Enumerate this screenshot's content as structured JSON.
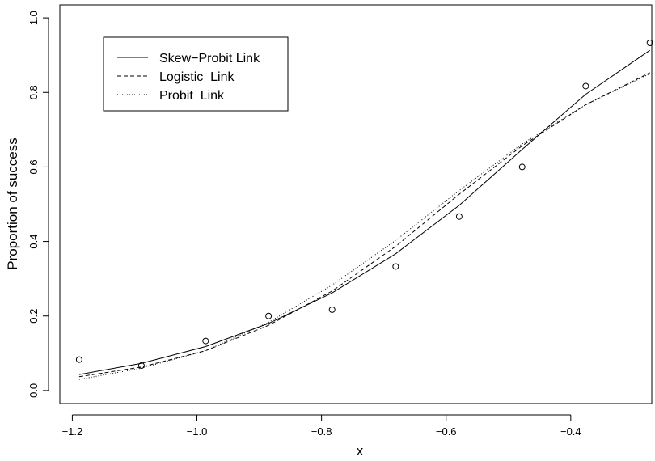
{
  "chart_data": {
    "type": "line",
    "xlabel": "x",
    "ylabel": "Proportion of success",
    "xlim": [
      -1.22,
      -0.27
    ],
    "ylim": [
      -0.035,
      1.035
    ],
    "x_ticks": [
      -1.2,
      -1.0,
      -0.8,
      -0.6,
      -0.4
    ],
    "x_tick_labels": [
      "−1.2",
      "−1.0",
      "−0.8",
      "−0.6",
      "−0.4"
    ],
    "y_ticks": [
      0.0,
      0.2,
      0.4,
      0.6,
      0.8,
      1.0
    ],
    "y_tick_labels": [
      "0.0",
      "0.2",
      "0.4",
      "0.6",
      "0.8",
      "1.0"
    ],
    "grid": false,
    "legend_position": "top-left",
    "observed": {
      "x": [
        -1.189,
        -1.089,
        -0.986,
        -0.885,
        -0.783,
        -0.681,
        -0.579,
        -0.478,
        -0.376,
        -0.273
      ],
      "y": [
        0.083,
        0.067,
        0.133,
        0.2,
        0.217,
        0.333,
        0.467,
        0.6,
        0.817,
        0.933
      ]
    },
    "series": [
      {
        "name": "Skew−Probit Link",
        "dash": "solid",
        "x": [
          -1.189,
          -1.089,
          -0.986,
          -0.885,
          -0.783,
          -0.681,
          -0.579,
          -0.478,
          -0.376,
          -0.273
        ],
        "y": [
          0.043,
          0.073,
          0.118,
          0.18,
          0.262,
          0.367,
          0.497,
          0.647,
          0.795,
          0.913
        ]
      },
      {
        "name": "Logistic  Link",
        "dash": "dashed",
        "x": [
          -1.189,
          -1.089,
          -0.986,
          -0.885,
          -0.783,
          -0.681,
          -0.579,
          -0.478,
          -0.376,
          -0.273
        ],
        "y": [
          0.037,
          0.063,
          0.107,
          0.175,
          0.267,
          0.387,
          0.527,
          0.657,
          0.767,
          0.853
        ]
      },
      {
        "name": "Probit  Link",
        "dash": "dotted",
        "x": [
          -1.189,
          -1.089,
          -0.986,
          -0.885,
          -0.783,
          -0.681,
          -0.579,
          -0.478,
          -0.376,
          -0.273
        ],
        "y": [
          0.03,
          0.06,
          0.107,
          0.183,
          0.283,
          0.403,
          0.537,
          0.662,
          0.767,
          0.85
        ]
      }
    ]
  }
}
